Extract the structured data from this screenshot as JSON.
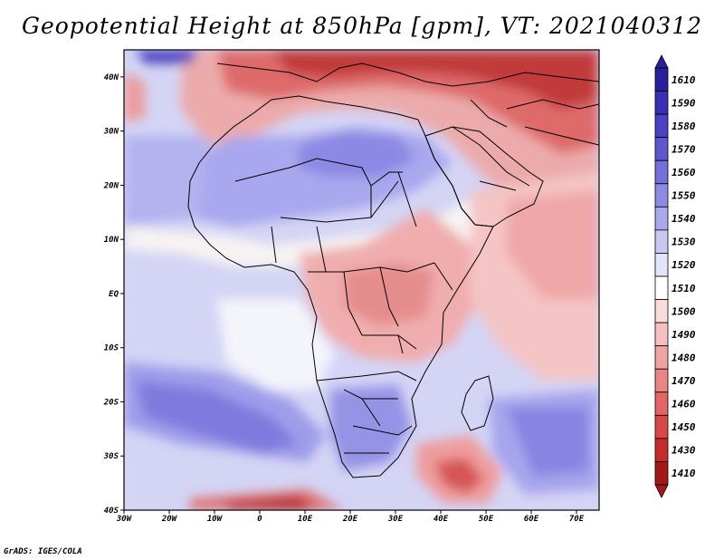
{
  "title": "Geopotential Height at 850hPa [gpm], VT: 2021040312",
  "footer": "GrADS: IGES/COLA",
  "map": {
    "lon_range": [
      -30,
      75
    ],
    "lat_range": [
      -40,
      45
    ],
    "x_ticks": [
      {
        "lon": -30,
        "label": "30W"
      },
      {
        "lon": -20,
        "label": "20W"
      },
      {
        "lon": -10,
        "label": "10W"
      },
      {
        "lon": 0,
        "label": "0"
      },
      {
        "lon": 10,
        "label": "10E"
      },
      {
        "lon": 20,
        "label": "20E"
      },
      {
        "lon": 30,
        "label": "30E"
      },
      {
        "lon": 40,
        "label": "40E"
      },
      {
        "lon": 50,
        "label": "50E"
      },
      {
        "lon": 60,
        "label": "60E"
      },
      {
        "lon": 70,
        "label": "70E"
      }
    ],
    "y_ticks": [
      {
        "lat": 40,
        "label": "40N"
      },
      {
        "lat": 30,
        "label": "30N"
      },
      {
        "lat": 20,
        "label": "20N"
      },
      {
        "lat": 10,
        "label": "10N"
      },
      {
        "lat": 0,
        "label": "EQ"
      },
      {
        "lat": -10,
        "label": "10S"
      },
      {
        "lat": -20,
        "label": "20S"
      },
      {
        "lat": -30,
        "label": "30S"
      },
      {
        "lat": -40,
        "label": "40S"
      }
    ]
  },
  "colorbar": {
    "levels": [
      "1610",
      "1590",
      "1580",
      "1570",
      "1560",
      "1550",
      "1540",
      "1530",
      "1520",
      "1510",
      "1500",
      "1490",
      "1480",
      "1470",
      "1460",
      "1450",
      "1430",
      "1410"
    ],
    "colors": [
      "#2a1f9c",
      "#3a2fb2",
      "#4b41c4",
      "#5f57d0",
      "#7470db",
      "#8e8ae4",
      "#aaa8ec",
      "#c8c8f3",
      "#e3e3f9",
      "#ffffff",
      "#f9dbdb",
      "#f6c0c0",
      "#f0a3a3",
      "#ea8585",
      "#e26666",
      "#d84848",
      "#c72c2c",
      "#a51818"
    ],
    "background_color": "#d7d7f7"
  }
}
